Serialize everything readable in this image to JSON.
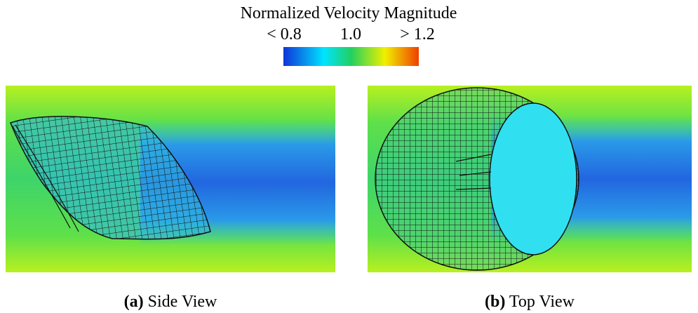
{
  "colorbar": {
    "title": "Normalized Velocity Magnitude",
    "labels": [
      "< 0.8",
      "1.0",
      "> 1.2"
    ]
  },
  "panels": [
    {
      "label": "(a)",
      "caption": "Side View"
    },
    {
      "label": "(b)",
      "caption": "Top View"
    }
  ]
}
